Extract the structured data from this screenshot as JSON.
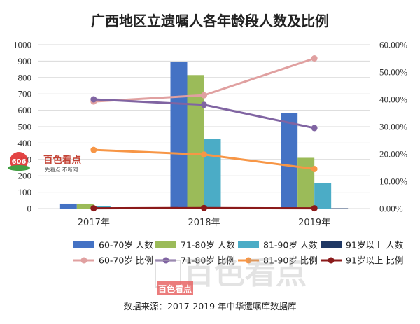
{
  "chart_data": {
    "type": "bar",
    "title": "广西地区立遗嘱人各年龄段人数及比例",
    "categories": [
      "2017年",
      "2018年",
      "2019年"
    ],
    "left_axis": {
      "ylim": [
        0,
        1000
      ],
      "ticks": [
        "0",
        "100",
        "200",
        "300",
        "400",
        "500",
        "600",
        "700",
        "800",
        "900",
        "1000"
      ]
    },
    "right_axis": {
      "ylim": [
        0,
        60
      ],
      "ticks": [
        "0.00%",
        "10.00%",
        "20.00%",
        "30.00%",
        "40.00%",
        "50.00%",
        "60.00%"
      ]
    },
    "series": [
      {
        "name": "60-70岁 人数",
        "kind": "bar",
        "axis": "left",
        "color": "#4472c4",
        "values": [
          30,
          895,
          585
        ]
      },
      {
        "name": "71-80岁 人数",
        "kind": "bar",
        "axis": "left",
        "color": "#9bbb59",
        "values": [
          30,
          815,
          310
        ]
      },
      {
        "name": "81-90岁 人数",
        "kind": "bar",
        "axis": "left",
        "color": "#4bacc6",
        "values": [
          15,
          425,
          155
        ]
      },
      {
        "name": "91岁以上 人数",
        "kind": "bar",
        "axis": "left",
        "color": "#1f3864",
        "values": [
          1,
          3,
          2
        ]
      },
      {
        "name": "60-70岁 比例",
        "kind": "line",
        "axis": "right",
        "color": "#e0a0a0",
        "values": [
          39.2,
          41.5,
          55.0
        ]
      },
      {
        "name": "71-80岁 比例",
        "kind": "line",
        "axis": "right",
        "color": "#8064a2",
        "values": [
          40.0,
          38.0,
          29.5
        ]
      },
      {
        "name": "81-90岁 比例",
        "kind": "line",
        "axis": "right",
        "color": "#f79646",
        "values": [
          21.5,
          19.8,
          14.5
        ]
      },
      {
        "name": "91岁以上 比例",
        "kind": "line",
        "axis": "right",
        "color": "#8b1a1a",
        "values": [
          0.1,
          0.2,
          0.1
        ]
      }
    ],
    "legend_position": "bottom",
    "source": "数据来源：2017-2019 年中华遗嘱库数据库"
  },
  "watermark": {
    "logo_text": "百色看点",
    "logo_sub": "先看点 不断网",
    "logo_badge": "606",
    "big_text": "百色看点",
    "small_text": "百色看点"
  },
  "colors": {
    "gridline": "#d9d9d9",
    "accent_red": "#c0504d"
  }
}
